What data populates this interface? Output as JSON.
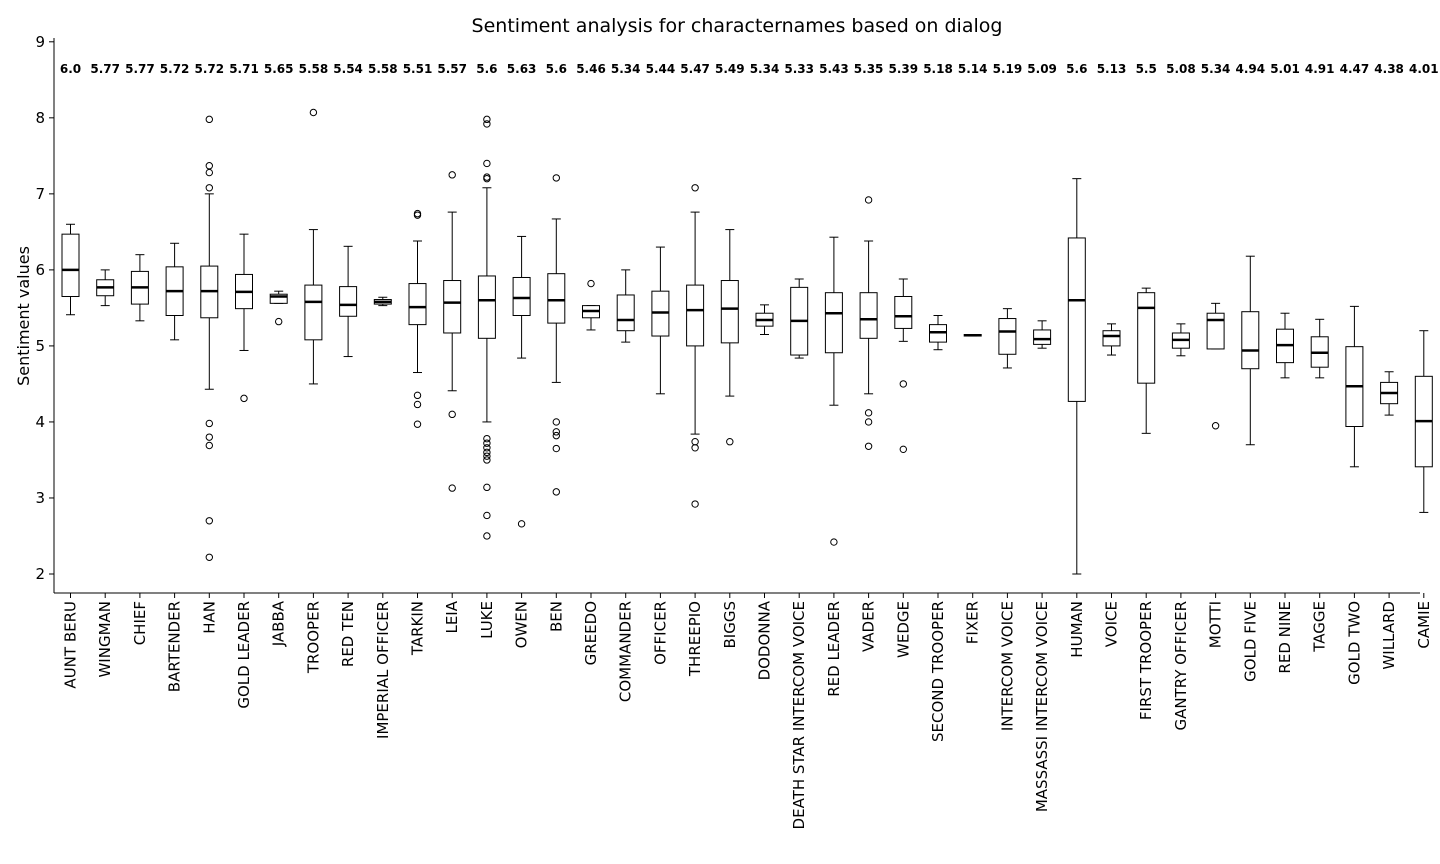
{
  "chart_data": {
    "type": "box",
    "title": "Sentiment analysis for characternames based on dialog",
    "ylabel": "Sentiment values",
    "xlabel": "",
    "ylim": [
      1.75,
      9.05
    ],
    "yticks": [
      2,
      3,
      4,
      5,
      6,
      7,
      8,
      9
    ],
    "grid": false,
    "legend": "none",
    "categories": [
      {
        "name": "AUNT BERU",
        "label": "6.0",
        "median": 6.0,
        "q1": 5.65,
        "q3": 6.47,
        "wlo": 5.41,
        "whi": 6.6,
        "outliers": []
      },
      {
        "name": "WINGMAN",
        "label": "5.77",
        "median": 5.77,
        "q1": 5.66,
        "q3": 5.87,
        "wlo": 5.53,
        "whi": 6.0,
        "outliers": []
      },
      {
        "name": "CHIEF",
        "label": "5.77",
        "median": 5.77,
        "q1": 5.55,
        "q3": 5.98,
        "wlo": 5.33,
        "whi": 6.2,
        "outliers": []
      },
      {
        "name": "BARTENDER",
        "label": "5.72",
        "median": 5.72,
        "q1": 5.4,
        "q3": 6.04,
        "wlo": 5.08,
        "whi": 6.35,
        "outliers": []
      },
      {
        "name": "HAN",
        "label": "5.72",
        "median": 5.72,
        "q1": 5.37,
        "q3": 6.05,
        "wlo": 4.43,
        "whi": 7.0,
        "outliers": [
          7.98,
          7.37,
          7.28,
          7.08,
          3.98,
          3.8,
          3.69,
          2.7,
          2.22
        ]
      },
      {
        "name": "GOLD LEADER",
        "label": "5.71",
        "median": 5.71,
        "q1": 5.49,
        "q3": 5.94,
        "wlo": 4.94,
        "whi": 6.47,
        "outliers": [
          4.31
        ]
      },
      {
        "name": "JABBA",
        "label": "5.65",
        "median": 5.65,
        "q1": 5.56,
        "q3": 5.68,
        "wlo": 5.56,
        "whi": 5.72,
        "outliers": [
          5.32
        ]
      },
      {
        "name": "TROOPER",
        "label": "5.58",
        "median": 5.58,
        "q1": 5.08,
        "q3": 5.8,
        "wlo": 4.5,
        "whi": 6.53,
        "outliers": [
          8.07
        ]
      },
      {
        "name": "RED TEN",
        "label": "5.54",
        "median": 5.54,
        "q1": 5.39,
        "q3": 5.78,
        "wlo": 4.86,
        "whi": 6.31,
        "outliers": []
      },
      {
        "name": "IMPERIAL OFFICER",
        "label": "5.58",
        "median": 5.58,
        "q1": 5.55,
        "q3": 5.61,
        "wlo": 5.53,
        "whi": 5.64,
        "outliers": []
      },
      {
        "name": "TARKIN",
        "label": "5.51",
        "median": 5.51,
        "q1": 5.28,
        "q3": 5.82,
        "wlo": 4.65,
        "whi": 6.38,
        "outliers": [
          6.74,
          6.72,
          4.35,
          4.23,
          3.97
        ]
      },
      {
        "name": "LEIA",
        "label": "5.57",
        "median": 5.57,
        "q1": 5.17,
        "q3": 5.86,
        "wlo": 4.41,
        "whi": 6.76,
        "outliers": [
          7.25,
          4.1,
          3.13
        ]
      },
      {
        "name": "LUKE",
        "label": "5.6",
        "median": 5.6,
        "q1": 5.1,
        "q3": 5.92,
        "wlo": 4.0,
        "whi": 7.08,
        "outliers": [
          7.98,
          7.92,
          7.4,
          7.22,
          7.2,
          3.78,
          3.72,
          3.66,
          3.6,
          3.55,
          3.5,
          3.14,
          2.77,
          2.5
        ]
      },
      {
        "name": "OWEN",
        "label": "5.63",
        "median": 5.63,
        "q1": 5.4,
        "q3": 5.9,
        "wlo": 4.84,
        "whi": 6.44,
        "outliers": [
          2.66
        ]
      },
      {
        "name": "BEN",
        "label": "5.6",
        "median": 5.6,
        "q1": 5.3,
        "q3": 5.95,
        "wlo": 4.52,
        "whi": 6.67,
        "outliers": [
          7.21,
          4.0,
          3.87,
          3.82,
          3.65,
          3.08
        ]
      },
      {
        "name": "GREEDO",
        "label": "5.46",
        "median": 5.46,
        "q1": 5.37,
        "q3": 5.53,
        "wlo": 5.21,
        "whi": 5.53,
        "outliers": [
          5.82
        ]
      },
      {
        "name": "COMMANDER",
        "label": "5.34",
        "median": 5.34,
        "q1": 5.2,
        "q3": 5.67,
        "wlo": 5.05,
        "whi": 6.0,
        "outliers": []
      },
      {
        "name": "OFFICER",
        "label": "5.44",
        "median": 5.44,
        "q1": 5.13,
        "q3": 5.72,
        "wlo": 4.37,
        "whi": 6.3,
        "outliers": []
      },
      {
        "name": "THREEPIO",
        "label": "5.47",
        "median": 5.47,
        "q1": 5.0,
        "q3": 5.8,
        "wlo": 3.84,
        "whi": 6.76,
        "outliers": [
          7.08,
          3.74,
          3.66,
          2.92
        ]
      },
      {
        "name": "BIGGS",
        "label": "5.49",
        "median": 5.49,
        "q1": 5.04,
        "q3": 5.86,
        "wlo": 4.34,
        "whi": 6.53,
        "outliers": [
          3.74
        ]
      },
      {
        "name": "DODONNA",
        "label": "5.34",
        "median": 5.34,
        "q1": 5.26,
        "q3": 5.43,
        "wlo": 5.15,
        "whi": 5.54,
        "outliers": []
      },
      {
        "name": "DEATH STAR INTERCOM VOICE",
        "label": "5.33",
        "median": 5.33,
        "q1": 4.88,
        "q3": 5.77,
        "wlo": 4.84,
        "whi": 5.88,
        "outliers": []
      },
      {
        "name": "RED LEADER",
        "label": "5.43",
        "median": 5.43,
        "q1": 4.91,
        "q3": 5.7,
        "wlo": 4.22,
        "whi": 6.43,
        "outliers": [
          2.42
        ]
      },
      {
        "name": "VADER",
        "label": "5.35",
        "median": 5.35,
        "q1": 5.1,
        "q3": 5.7,
        "wlo": 4.37,
        "whi": 6.38,
        "outliers": [
          6.92,
          4.12,
          4.0,
          3.68
        ]
      },
      {
        "name": "WEDGE",
        "label": "5.39",
        "median": 5.39,
        "q1": 5.23,
        "q3": 5.65,
        "wlo": 5.06,
        "whi": 5.88,
        "outliers": [
          4.5,
          3.64
        ]
      },
      {
        "name": "SECOND TROOPER",
        "label": "5.18",
        "median": 5.18,
        "q1": 5.05,
        "q3": 5.28,
        "wlo": 4.95,
        "whi": 5.4,
        "outliers": []
      },
      {
        "name": "FIXER",
        "label": "5.14",
        "median": 5.14,
        "q1": 5.13,
        "q3": 5.15,
        "wlo": 5.13,
        "whi": 5.15,
        "outliers": []
      },
      {
        "name": "INTERCOM VOICE",
        "label": "5.19",
        "median": 5.19,
        "q1": 4.89,
        "q3": 5.36,
        "wlo": 4.71,
        "whi": 5.49,
        "outliers": []
      },
      {
        "name": "MASSASSI INTERCOM VOICE",
        "label": "5.09",
        "median": 5.09,
        "q1": 5.02,
        "q3": 5.21,
        "wlo": 4.97,
        "whi": 5.33,
        "outliers": []
      },
      {
        "name": "HUMAN",
        "label": "5.6",
        "median": 5.6,
        "q1": 4.27,
        "q3": 6.42,
        "wlo": 2.0,
        "whi": 7.2,
        "outliers": []
      },
      {
        "name": "VOICE",
        "label": "5.13",
        "median": 5.13,
        "q1": 5.0,
        "q3": 5.2,
        "wlo": 4.88,
        "whi": 5.29,
        "outliers": []
      },
      {
        "name": "FIRST TROOPER",
        "label": "5.5",
        "median": 5.5,
        "q1": 4.51,
        "q3": 5.7,
        "wlo": 3.85,
        "whi": 5.76,
        "outliers": []
      },
      {
        "name": "GANTRY OFFICER",
        "label": "5.08",
        "median": 5.08,
        "q1": 4.97,
        "q3": 5.17,
        "wlo": 4.87,
        "whi": 5.29,
        "outliers": []
      },
      {
        "name": "MOTTI",
        "label": "5.34",
        "median": 5.34,
        "q1": 4.96,
        "q3": 5.43,
        "wlo": 4.96,
        "whi": 5.56,
        "outliers": [
          3.95
        ]
      },
      {
        "name": "GOLD FIVE",
        "label": "4.94",
        "median": 4.94,
        "q1": 4.7,
        "q3": 5.45,
        "wlo": 3.7,
        "whi": 6.18,
        "outliers": []
      },
      {
        "name": "RED NINE",
        "label": "5.01",
        "median": 5.01,
        "q1": 4.78,
        "q3": 5.22,
        "wlo": 4.58,
        "whi": 5.43,
        "outliers": []
      },
      {
        "name": "TAGGE",
        "label": "4.91",
        "median": 4.91,
        "q1": 4.72,
        "q3": 5.12,
        "wlo": 4.58,
        "whi": 5.35,
        "outliers": []
      },
      {
        "name": "GOLD TWO",
        "label": "4.47",
        "median": 4.47,
        "q1": 3.94,
        "q3": 4.99,
        "wlo": 3.41,
        "whi": 5.52,
        "outliers": []
      },
      {
        "name": "WILLARD",
        "label": "4.38",
        "median": 4.38,
        "q1": 4.24,
        "q3": 4.52,
        "wlo": 4.09,
        "whi": 4.66,
        "outliers": []
      },
      {
        "name": "CAMIE",
        "label": "4.01",
        "median": 4.01,
        "q1": 3.41,
        "q3": 4.6,
        "wlo": 2.81,
        "whi": 5.2,
        "outliers": []
      }
    ]
  }
}
